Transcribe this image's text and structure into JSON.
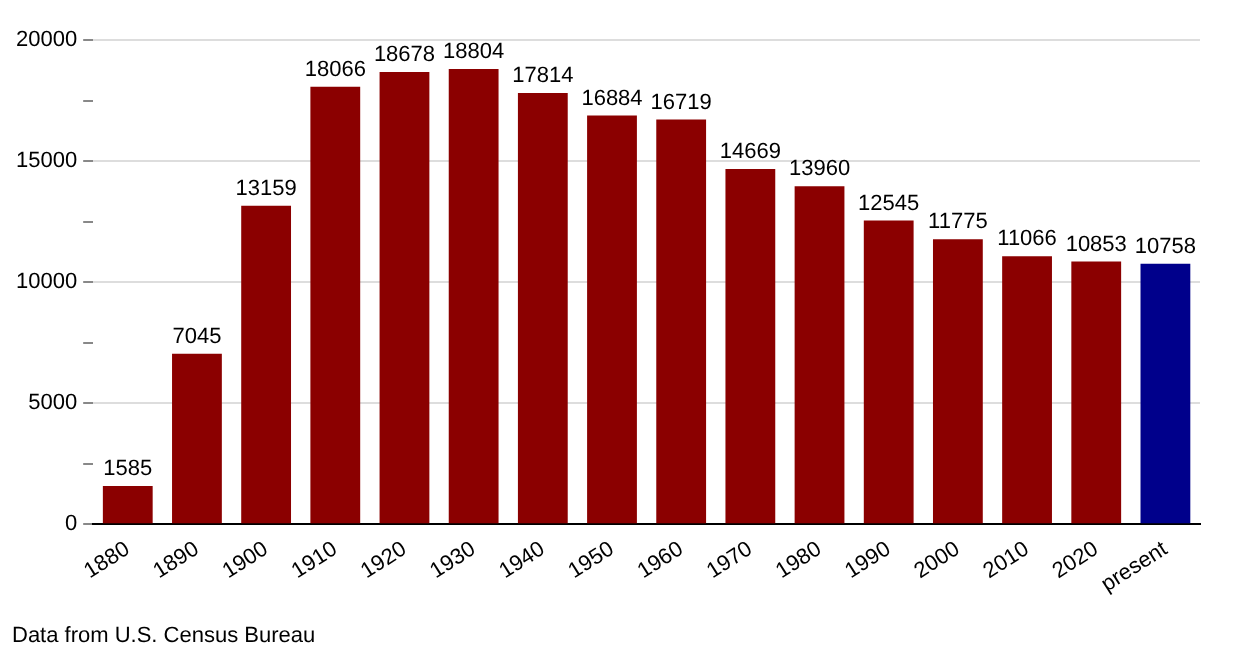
{
  "chart_data": {
    "type": "bar",
    "categories": [
      "1880",
      "1890",
      "1900",
      "1910",
      "1920",
      "1930",
      "1940",
      "1950",
      "1960",
      "1970",
      "1980",
      "1990",
      "2000",
      "2010",
      "2020",
      "present"
    ],
    "values": [
      1585,
      7045,
      13159,
      18066,
      18678,
      18804,
      17814,
      16884,
      16719,
      14669,
      13960,
      12545,
      11775,
      11066,
      10853,
      10758
    ],
    "colors": [
      "#8b0000",
      "#8b0000",
      "#8b0000",
      "#8b0000",
      "#8b0000",
      "#8b0000",
      "#8b0000",
      "#8b0000",
      "#8b0000",
      "#8b0000",
      "#8b0000",
      "#8b0000",
      "#8b0000",
      "#8b0000",
      "#8b0000",
      "#00008b"
    ],
    "ylim": [
      0,
      20000
    ],
    "yticks": [
      0,
      {
        "value": 2500,
        "label": null
      },
      5000,
      {
        "value": 7500,
        "label": null
      },
      10000,
      {
        "value": 12500,
        "label": null
      },
      15000,
      {
        "value": 17500,
        "label": null
      },
      20000
    ],
    "grid": "y",
    "data_labels": true,
    "annotations": [
      "Data from U.S. Census Bureau"
    ]
  }
}
